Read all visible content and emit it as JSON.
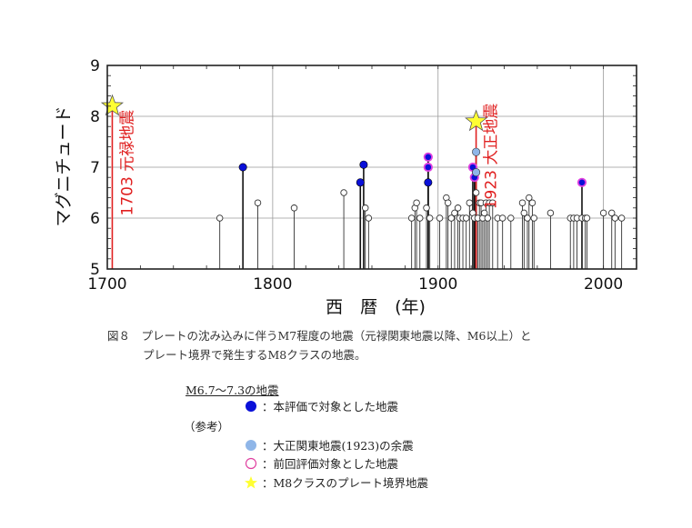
{
  "chart_data": {
    "type": "scatter",
    "style": "stem",
    "xlabel": "西　暦　(年)",
    "ylabel": "マグニチュード",
    "xlim": [
      1700,
      2020
    ],
    "ylim": [
      5,
      9
    ],
    "xticks": [
      "1700",
      "1800",
      "1900",
      "2000"
    ],
    "yticks": [
      "5",
      "6",
      "7",
      "8",
      "9"
    ],
    "grid": true,
    "baseline": 5,
    "colors": {
      "target": "#0a10d8",
      "aftershock": "#8fb6e8",
      "previous": "#e040e0",
      "star": "#ffff33",
      "star_stroke": "#555555",
      "highlight_line": "#e02020",
      "open": "#ffffff"
    },
    "open_events": [
      {
        "x": 1768,
        "y": 6.0
      },
      {
        "x": 1791,
        "y": 6.3
      },
      {
        "x": 1813,
        "y": 6.2
      },
      {
        "x": 1843,
        "y": 6.5
      },
      {
        "x": 1856,
        "y": 6.2
      },
      {
        "x": 1858,
        "y": 6.0
      },
      {
        "x": 1884,
        "y": 6.0
      },
      {
        "x": 1886,
        "y": 6.2
      },
      {
        "x": 1887,
        "y": 6.3
      },
      {
        "x": 1889,
        "y": 6.0
      },
      {
        "x": 1893,
        "y": 6.2
      },
      {
        "x": 1895,
        "y": 6.0
      },
      {
        "x": 1901,
        "y": 6.0
      },
      {
        "x": 1905,
        "y": 6.4
      },
      {
        "x": 1906,
        "y": 6.3
      },
      {
        "x": 1908,
        "y": 6.0
      },
      {
        "x": 1910,
        "y": 6.1
      },
      {
        "x": 1912,
        "y": 6.2
      },
      {
        "x": 1913,
        "y": 6.0
      },
      {
        "x": 1915,
        "y": 6.0
      },
      {
        "x": 1917,
        "y": 6.0
      },
      {
        "x": 1919,
        "y": 6.3
      },
      {
        "x": 1921,
        "y": 6.1
      },
      {
        "x": 1922,
        "y": 6.0
      },
      {
        "x": 1923,
        "y": 6.5
      },
      {
        "x": 1924,
        "y": 6.0
      },
      {
        "x": 1925,
        "y": 6.3
      },
      {
        "x": 1926,
        "y": 6.3
      },
      {
        "x": 1927,
        "y": 6.0
      },
      {
        "x": 1928,
        "y": 6.1
      },
      {
        "x": 1929,
        "y": 6.3
      },
      {
        "x": 1930,
        "y": 6.0
      },
      {
        "x": 1931,
        "y": 6.3
      },
      {
        "x": 1933,
        "y": 6.3
      },
      {
        "x": 1936,
        "y": 6.0
      },
      {
        "x": 1939,
        "y": 6.0
      },
      {
        "x": 1944,
        "y": 6.0
      },
      {
        "x": 1951,
        "y": 6.3
      },
      {
        "x": 1952,
        "y": 6.1
      },
      {
        "x": 1954,
        "y": 6.0
      },
      {
        "x": 1955,
        "y": 6.4
      },
      {
        "x": 1957,
        "y": 6.3
      },
      {
        "x": 1958,
        "y": 6.0
      },
      {
        "x": 1968,
        "y": 6.1
      },
      {
        "x": 1980,
        "y": 6.0
      },
      {
        "x": 1982,
        "y": 6.0
      },
      {
        "x": 1984,
        "y": 6.0
      },
      {
        "x": 1987,
        "y": 6.0
      },
      {
        "x": 1989,
        "y": 6.0
      },
      {
        "x": 1990,
        "y": 6.0
      },
      {
        "x": 2000,
        "y": 6.1
      },
      {
        "x": 2005,
        "y": 6.1
      },
      {
        "x": 2007,
        "y": 6.0
      },
      {
        "x": 2011,
        "y": 6.0
      }
    ],
    "target_events": [
      {
        "x": 1782,
        "y": 7.0
      },
      {
        "x": 1853,
        "y": 6.7
      },
      {
        "x": 1855,
        "y": 7.05
      },
      {
        "x": 1894,
        "y": 6.7
      }
    ],
    "previous_target_events": [
      {
        "x": 1894,
        "y": 7.2
      },
      {
        "x": 1894,
        "y": 7.0
      },
      {
        "x": 1921,
        "y": 7.0
      },
      {
        "x": 1922,
        "y": 6.8
      },
      {
        "x": 1987,
        "y": 6.7
      }
    ],
    "aftershock_events": [
      {
        "x": 1923,
        "y": 7.3
      },
      {
        "x": 1923,
        "y": 6.9
      }
    ],
    "plate_boundary_events": [
      {
        "x": 1703,
        "y": 8.2,
        "label": "1703 元禄地震"
      },
      {
        "x": 1923,
        "y": 7.9,
        "label": "1923 大正地震"
      }
    ]
  },
  "caption": {
    "line1": "図８　プレートの沈み込みに伴うM7程度の地震（元禄関東地震以降、M6以上）と",
    "line2": "プレート境界で発生するM8クラスの地震。"
  },
  "legend": {
    "title": "M6.7～7.3の地震",
    "reference": "（参考）",
    "items": {
      "target": "：本評価で対象とした地震",
      "aftershock": "：大正関東地震(1923)の余震",
      "previous": "：前回評価対象とした地震",
      "star": "：M8クラスのプレート境界地震"
    }
  }
}
